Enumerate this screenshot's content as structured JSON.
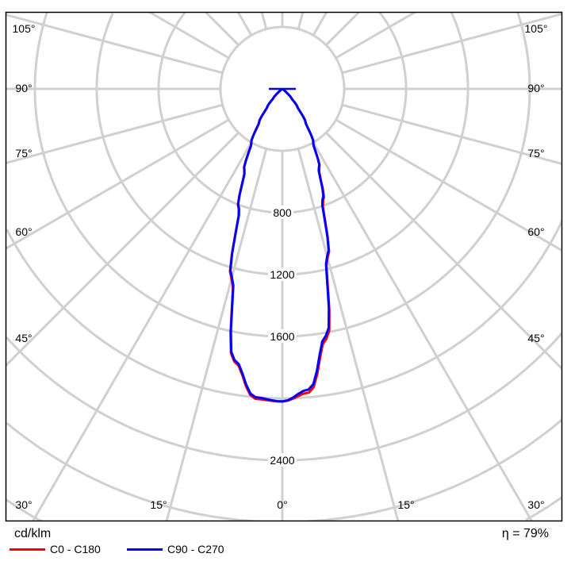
{
  "chart_data": {
    "type": "polar",
    "unit_label": "cd/klm",
    "efficiency_label": "η = 79%",
    "radial_ticks": [
      400,
      800,
      1200,
      1600,
      2000,
      2400,
      2800,
      3200
    ],
    "radial_tick_labels": [
      "800",
      "1200",
      "1600",
      "2400"
    ],
    "angle_labels_left": [
      "105°",
      "90°",
      "75°",
      "60°",
      "45°",
      "30°",
      "15°"
    ],
    "angle_labels_right": [
      "105°",
      "90°",
      "75°",
      "60°",
      "45°",
      "30°",
      "15°"
    ],
    "angle_label_center": "0°",
    "gamma": [
      0,
      5,
      10,
      15,
      20,
      25,
      30,
      35,
      40,
      45,
      50,
      55,
      60,
      65,
      70,
      75,
      80,
      85,
      90
    ],
    "series": [
      {
        "name": "C0 - C180",
        "color": "#ff0000",
        "right": [
          2020,
          1970,
          1640,
          1130,
          770,
          565,
          400,
          262,
          152,
          80,
          32,
          10,
          0,
          0,
          0,
          0,
          0,
          0,
          0
        ],
        "left": [
          2020,
          2010,
          1790,
          1270,
          825,
          582,
          402,
          262,
          150,
          78,
          30,
          8,
          0,
          0,
          0,
          0,
          0,
          0,
          0
        ]
      },
      {
        "name": "C90 - C270",
        "color": "#0000ff",
        "right": [
          2020,
          1950,
          1620,
          1120,
          760,
          560,
          400,
          260,
          150,
          80,
          30,
          10,
          0,
          0,
          0,
          0,
          0,
          0,
          0
        ],
        "left": [
          2020,
          2000,
          1780,
          1260,
          820,
          580,
          400,
          260,
          150,
          78,
          30,
          8,
          0,
          0,
          0,
          0,
          0,
          0,
          0
        ]
      }
    ]
  }
}
